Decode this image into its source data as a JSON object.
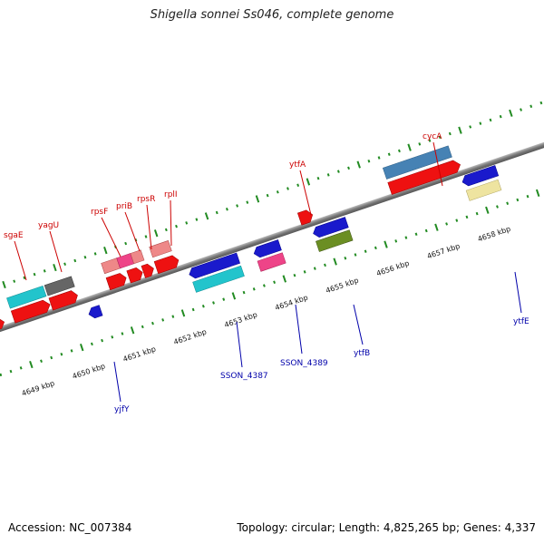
{
  "title": "Shigella sonnei Ss046, complete genome",
  "accession": "Accession: NC_007384",
  "summary": "Topology: circular; Length: 4,825,265 bp; Genes: 4,337",
  "scale_labels": [
    {
      "id": "4649",
      "text": "4649 kbp"
    },
    {
      "id": "4650",
      "text": "4650 kbp"
    },
    {
      "id": "4651",
      "text": "4651 kbp"
    },
    {
      "id": "4652",
      "text": "4652 kbp"
    },
    {
      "id": "4653",
      "text": "4653 kbp"
    },
    {
      "id": "4654",
      "text": "4654 kbp"
    },
    {
      "id": "4655",
      "text": "4655 kbp"
    },
    {
      "id": "4656",
      "text": "4656 kbp"
    },
    {
      "id": "4657",
      "text": "4657 kbp"
    },
    {
      "id": "4658",
      "text": "4658 kbp"
    }
  ],
  "gene_labels_top": [
    {
      "id": "sgaE",
      "text": "sgaE"
    },
    {
      "id": "yagU",
      "text": "yagU"
    },
    {
      "id": "rpsF",
      "text": "rpsF"
    },
    {
      "id": "priB",
      "text": "priB"
    },
    {
      "id": "rpsR",
      "text": "rpsR"
    },
    {
      "id": "rplI",
      "text": "rplI"
    },
    {
      "id": "ytfA",
      "text": "ytfA"
    },
    {
      "id": "cycA",
      "text": "cycA"
    }
  ],
  "gene_labels_bottom": [
    {
      "id": "yjfY",
      "text": "yjfY"
    },
    {
      "id": "SSON_4387",
      "text": "SSON_4387"
    },
    {
      "id": "SSON_4389",
      "text": "SSON_4389"
    },
    {
      "id": "ytfB",
      "text": "ytfB"
    },
    {
      "id": "ytfE",
      "text": "ytfE"
    }
  ],
  "colors": {
    "backbone": "#8a8a8a",
    "tick": "#228b22",
    "forward_gene": "#ee1111",
    "reverse_gene": "#1a1acc",
    "cds_cyan": "#22c4cc",
    "cds_pink": "#ee4488",
    "cds_lightpink": "#ee8888",
    "cds_gray": "#666666",
    "cds_steelblue": "#4682b4",
    "cds_olive": "#6b8e23",
    "cds_khaki": "#eee4a0",
    "label_red": "#cc0000",
    "label_blue": "#0000aa"
  }
}
